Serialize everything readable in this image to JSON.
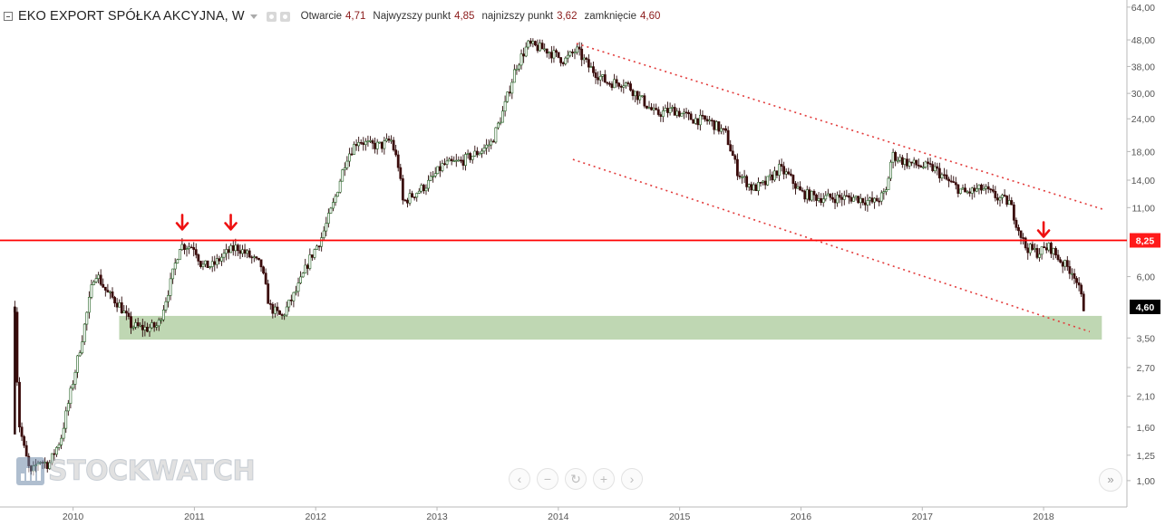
{
  "header": {
    "title": "EKO EXPORT SPÓŁKA AKCYJNA, W",
    "open_label": "Otwarcie",
    "open_value": "4,71",
    "high_label": "Najwyzszy punkt",
    "high_value": "4,85",
    "low_label": "najnizszy punkt",
    "low_value": "3,62",
    "close_label": "zamknięcie",
    "close_value": "4,60"
  },
  "watermark": "STOCKWATCH",
  "nav_icons": [
    "chevron-left-icon",
    "minus-icon",
    "reset-icon",
    "plus-icon",
    "chevron-right-icon"
  ],
  "chart_data": {
    "type": "candlestick",
    "y_scale": "log",
    "y_range": [
      0.93,
      66
    ],
    "x_range": [
      2009.45,
      2018.5
    ],
    "y_ticks": [
      64,
      48,
      38,
      30,
      24,
      18,
      14,
      11,
      6,
      3.5,
      2.7,
      2.1,
      1.6,
      1.25,
      1.0
    ],
    "y_tick_labels": [
      "64,00",
      "48,00",
      "38,00",
      "30,00",
      "24,00",
      "18,00",
      "14,00",
      "11,00",
      "6,00",
      "3,50",
      "2,70",
      "2,10",
      "1,60",
      "1,25",
      "1,00"
    ],
    "x_ticks": [
      2010,
      2011,
      2012,
      2013,
      2014,
      2015,
      2016,
      2017,
      2018
    ],
    "x_tick_labels": [
      "2010",
      "2011",
      "2012",
      "2013",
      "2014",
      "2015",
      "2016",
      "2017",
      "2018"
    ],
    "price_path": [
      [
        2009.52,
        4.6
      ],
      [
        2009.55,
        1.7
      ],
      [
        2009.6,
        1.3
      ],
      [
        2009.65,
        1.05
      ],
      [
        2009.72,
        1.2
      ],
      [
        2009.8,
        1.15
      ],
      [
        2009.9,
        1.45
      ],
      [
        2010.0,
        2.4
      ],
      [
        2010.08,
        3.6
      ],
      [
        2010.18,
        6.3
      ],
      [
        2010.28,
        5.2
      ],
      [
        2010.38,
        4.7
      ],
      [
        2010.48,
        3.9
      ],
      [
        2010.6,
        3.8
      ],
      [
        2010.7,
        3.9
      ],
      [
        2010.8,
        5.6
      ],
      [
        2010.88,
        7.9
      ],
      [
        2011.0,
        7.8
      ],
      [
        2011.06,
        6.6
      ],
      [
        2011.15,
        6.6
      ],
      [
        2011.25,
        7.3
      ],
      [
        2011.35,
        7.8
      ],
      [
        2011.45,
        7.2
      ],
      [
        2011.55,
        6.6
      ],
      [
        2011.62,
        4.6
      ],
      [
        2011.72,
        4.2
      ],
      [
        2011.85,
        5.4
      ],
      [
        2011.95,
        7.0
      ],
      [
        2012.05,
        8.5
      ],
      [
        2012.15,
        11.5
      ],
      [
        2012.25,
        17.0
      ],
      [
        2012.35,
        20.0
      ],
      [
        2012.45,
        19.0
      ],
      [
        2012.55,
        19.0
      ],
      [
        2012.62,
        20.0
      ],
      [
        2012.68,
        16.0
      ],
      [
        2012.72,
        11.5
      ],
      [
        2012.82,
        12.5
      ],
      [
        2012.92,
        13.5
      ],
      [
        2013.05,
        16.0
      ],
      [
        2013.2,
        16.5
      ],
      [
        2013.35,
        18.0
      ],
      [
        2013.45,
        19.5
      ],
      [
        2013.55,
        26.0
      ],
      [
        2013.65,
        38.0
      ],
      [
        2013.75,
        46.0
      ],
      [
        2013.9,
        44.0
      ],
      [
        2014.05,
        40.0
      ],
      [
        2014.15,
        44.0
      ],
      [
        2014.25,
        38.0
      ],
      [
        2014.4,
        33.0
      ],
      [
        2014.55,
        33.0
      ],
      [
        2014.7,
        28.0
      ],
      [
        2014.8,
        25.0
      ],
      [
        2014.95,
        26.0
      ],
      [
        2015.1,
        24.0
      ],
      [
        2015.25,
        23.5
      ],
      [
        2015.38,
        21.0
      ],
      [
        2015.48,
        15.0
      ],
      [
        2015.6,
        13.0
      ],
      [
        2015.7,
        13.5
      ],
      [
        2015.82,
        15.5
      ],
      [
        2015.9,
        14.5
      ],
      [
        2016.0,
        12.5
      ],
      [
        2016.15,
        12.0
      ],
      [
        2016.3,
        12.0
      ],
      [
        2016.45,
        12.0
      ],
      [
        2016.6,
        11.5
      ],
      [
        2016.7,
        12.5
      ],
      [
        2016.75,
        17.5
      ],
      [
        2016.85,
        16.5
      ],
      [
        2016.95,
        16.0
      ],
      [
        2017.1,
        15.5
      ],
      [
        2017.2,
        14.0
      ],
      [
        2017.35,
        12.5
      ],
      [
        2017.5,
        13.0
      ],
      [
        2017.62,
        12.0
      ],
      [
        2017.72,
        11.5
      ],
      [
        2017.78,
        9.5
      ],
      [
        2017.85,
        7.8
      ],
      [
        2017.95,
        7.4
      ],
      [
        2018.05,
        7.8
      ],
      [
        2018.15,
        6.8
      ],
      [
        2018.25,
        6.2
      ],
      [
        2018.3,
        5.2
      ],
      [
        2018.33,
        4.6
      ]
    ],
    "annotations": {
      "resistance": {
        "value": 8.25,
        "label": "8,25",
        "color": "#ff0000"
      },
      "last_price": {
        "value": 4.6,
        "label": "4,60"
      },
      "support_zone": {
        "from": 3.45,
        "to": 4.25,
        "x_from": 2010.38,
        "x_to": 2018.48,
        "color": "#a9c99a"
      },
      "channel_upper": {
        "from": [
          2014.15,
          46.5
        ],
        "to": [
          2018.5,
          10.8
        ]
      },
      "channel_lower": {
        "from": [
          2014.12,
          16.8
        ],
        "to": [
          2018.38,
          3.7
        ]
      },
      "arrows": [
        [
          2010.9,
          9.6
        ],
        [
          2011.3,
          9.6
        ],
        [
          2018.0,
          9.0
        ]
      ]
    }
  }
}
